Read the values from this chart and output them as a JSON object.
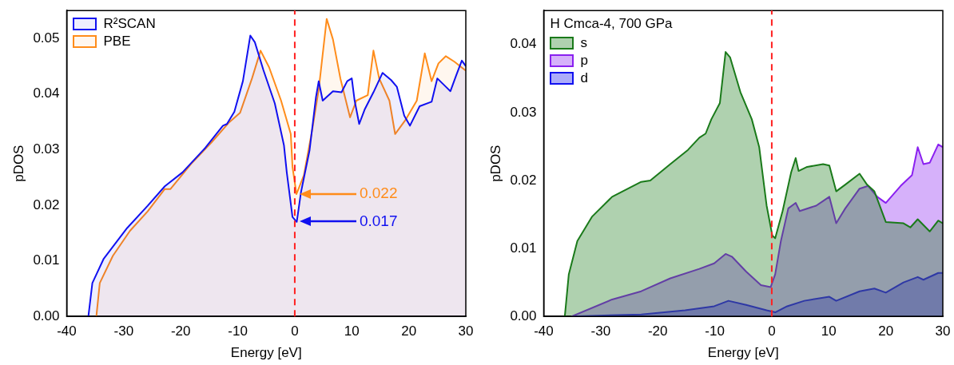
{
  "chart_data": [
    {
      "type": "line",
      "xlabel": "Energy [eV]",
      "ylabel": "pDOS",
      "xlim": [
        -40,
        30
      ],
      "ylim": [
        0,
        0.055
      ],
      "xticks": [
        -40,
        -30,
        -20,
        -10,
        0,
        10,
        20,
        30
      ],
      "yticks": [
        {
          "value": 0,
          "label": "0.00"
        },
        {
          "value": 0.01,
          "label": "0.01"
        },
        {
          "value": 0.02,
          "label": "0.02"
        },
        {
          "value": 0.03,
          "label": "0.03"
        },
        {
          "value": 0.04,
          "label": "0.04"
        },
        {
          "value": 0.05,
          "label": "0.05"
        }
      ],
      "legend": "top left",
      "grid": false,
      "marker": "none",
      "series": [
        {
          "name": "R²SCAN",
          "color": "#1010f0",
          "x": [
            -36.2,
            -35.5,
            -33.5,
            -29.4,
            -25.8,
            -22.8,
            -19.7,
            -15.7,
            -12.6,
            -11.9,
            -10.6,
            -9.1,
            -7.8,
            -7.0,
            -5.5,
            -3.5,
            -1.9,
            -1.4,
            -0.4,
            0.35,
            1.1,
            2.6,
            3.7,
            4.2,
            4.9,
            6.7,
            8.2,
            9.2,
            10.0,
            10.5,
            11.3,
            12.3,
            13.8,
            15.4,
            16.9,
            17.9,
            19.2,
            20.2,
            21.9,
            24.0,
            25.0,
            26.5,
            27.3,
            28.3,
            29.3,
            30
          ],
          "values": [
            0,
            0.006,
            0.0104,
            0.0159,
            0.0199,
            0.0234,
            0.0259,
            0.0303,
            0.0343,
            0.0346,
            0.0368,
            0.0423,
            0.0505,
            0.0493,
            0.0443,
            0.0383,
            0.0308,
            0.0259,
            0.0179,
            0.017,
            0.0224,
            0.0299,
            0.0393,
            0.0423,
            0.0388,
            0.0405,
            0.0403,
            0.0423,
            0.0428,
            0.0388,
            0.0346,
            0.0373,
            0.0403,
            0.0438,
            0.0425,
            0.0413,
            0.0361,
            0.0343,
            0.0378,
            0.0386,
            0.0428,
            0.0413,
            0.0405,
            0.0433,
            0.046,
            0.045
          ]
        },
        {
          "name": "PBE",
          "color": "#ff8c1a",
          "x": [
            -34.8,
            -34.2,
            -31.9,
            -28.9,
            -25.8,
            -22.8,
            -21.8,
            -18.2,
            -14.6,
            -11.6,
            -9.6,
            -7.5,
            -6.0,
            -4.5,
            -2.4,
            -0.7,
            -0.4,
            0.3,
            1.6,
            3.1,
            4.2,
            5.6,
            6.7,
            8.0,
            9.7,
            10.8,
            12.8,
            13.8,
            14.8,
            16.6,
            17.6,
            19.4,
            21.4,
            22.8,
            24.0,
            25.2,
            26.5,
            28.0,
            30
          ],
          "values": [
            0,
            0.006,
            0.0109,
            0.0154,
            0.0189,
            0.0229,
            0.0229,
            0.0274,
            0.0313,
            0.0348,
            0.0366,
            0.0428,
            0.0478,
            0.0448,
            0.0388,
            0.0328,
            0.0269,
            0.022,
            0.0254,
            0.0338,
            0.0408,
            0.0535,
            0.0498,
            0.0428,
            0.0358,
            0.0388,
            0.0398,
            0.0478,
            0.0428,
            0.0388,
            0.0328,
            0.0353,
            0.0388,
            0.0473,
            0.0423,
            0.0455,
            0.0468,
            0.0458,
            0.0442
          ]
        }
      ],
      "ref_lines": [
        {
          "axis": "x",
          "value": 0,
          "color": "#ff2020",
          "line_style": "dashed"
        }
      ],
      "annotations": [
        "0.022",
        "0.017"
      ]
    },
    {
      "type": "area",
      "xlabel": "Energy [eV]",
      "ylabel": "pDOS",
      "legend_title": "H Cmca-4, 700 GPa",
      "xlim": [
        -40,
        30
      ],
      "ylim": [
        0,
        0.045
      ],
      "xticks": [
        -40,
        -30,
        -20,
        -10,
        0,
        10,
        20,
        30
      ],
      "yticks": [
        {
          "value": 0,
          "label": "0.00"
        },
        {
          "value": 0.01,
          "label": "0.01"
        },
        {
          "value": 0.02,
          "label": "0.02"
        },
        {
          "value": 0.03,
          "label": "0.03"
        },
        {
          "value": 0.04,
          "label": "0.04"
        }
      ],
      "legend": "top left",
      "grid": false,
      "marker": "none",
      "series": [
        {
          "name": "s",
          "color": "#1a7a1a",
          "x": [
            -36.3,
            -35.6,
            -34.1,
            -31.5,
            -28.0,
            -22.9,
            -21.3,
            -17.8,
            -14.7,
            -12.7,
            -11.6,
            -10.6,
            -9.1,
            -8.1,
            -7.3,
            -5.5,
            -3.5,
            -2.2,
            -0.9,
            0.1,
            0.6,
            1.9,
            3.4,
            4.2,
            4.7,
            6.2,
            9.0,
            10.1,
            11.3,
            12.9,
            15.4,
            16.7,
            18.0,
            20.0,
            23.1,
            24.3,
            25.6,
            27.7,
            29.2,
            30
          ],
          "values": [
            0,
            0.0062,
            0.0111,
            0.0147,
            0.0176,
            0.0198,
            0.02,
            0.0224,
            0.0245,
            0.0263,
            0.0269,
            0.029,
            0.0314,
            0.0389,
            0.0381,
            0.033,
            0.029,
            0.0249,
            0.0163,
            0.0119,
            0.0115,
            0.0155,
            0.0212,
            0.0233,
            0.0214,
            0.022,
            0.0224,
            0.0222,
            0.0184,
            0.0194,
            0.021,
            0.0194,
            0.0184,
            0.0139,
            0.0137,
            0.0131,
            0.0143,
            0.0125,
            0.0141,
            0.0137
          ]
        },
        {
          "name": "p",
          "color": "#8a20f0",
          "x": [
            -35.1,
            -28.0,
            -22.9,
            -17.8,
            -12.7,
            -10.1,
            -8.1,
            -7.0,
            -4.5,
            -1.9,
            -0.2,
            0.6,
            1.6,
            2.9,
            4.2,
            4.9,
            7.8,
            10.1,
            11.3,
            12.9,
            15.4,
            16.9,
            18.5,
            20.0,
            22.6,
            24.6,
            25.6,
            26.6,
            27.7,
            29.2,
            30
          ],
          "values": [
            0,
            0.0025,
            0.0037,
            0.0056,
            0.007,
            0.0078,
            0.0092,
            0.0088,
            0.0066,
            0.0046,
            0.0043,
            0.0062,
            0.0111,
            0.0159,
            0.0167,
            0.0155,
            0.0163,
            0.0176,
            0.0137,
            0.0159,
            0.0188,
            0.0192,
            0.0176,
            0.0167,
            0.0192,
            0.0208,
            0.0249,
            0.0224,
            0.0226,
            0.0253,
            0.0249
          ]
        },
        {
          "name": "d",
          "color": "#1010f0",
          "x": [
            -35.1,
            -22.9,
            -15.2,
            -10.1,
            -7.6,
            -4.5,
            -0.9,
            0.6,
            2.7,
            5.7,
            10.1,
            11.3,
            15.4,
            18.0,
            20.0,
            23.1,
            25.6,
            26.6,
            29.2,
            30
          ],
          "values": [
            0,
            0.0003,
            0.0009,
            0.0015,
            0.0023,
            0.0017,
            0.0009,
            0.0006,
            0.0015,
            0.0023,
            0.0029,
            0.0023,
            0.0037,
            0.0041,
            0.0035,
            0.005,
            0.0058,
            0.0054,
            0.0064,
            0.0064
          ]
        }
      ],
      "ref_lines": [
        {
          "axis": "x",
          "value": 0,
          "color": "#ff2020",
          "line_style": "dashed"
        }
      ]
    }
  ]
}
